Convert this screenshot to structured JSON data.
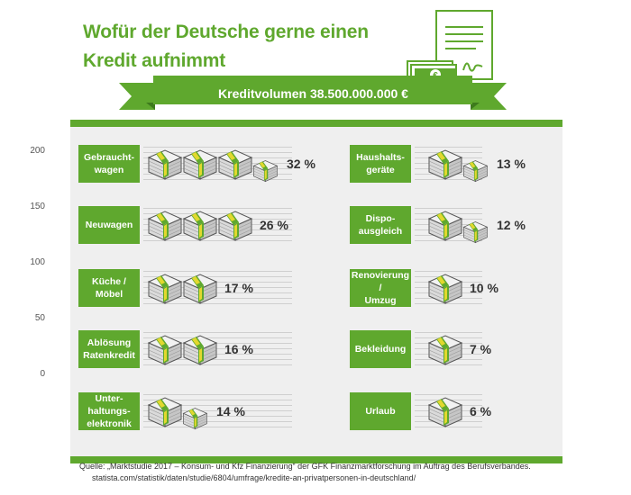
{
  "title": "Wofür der Deutsche gerne einen Kredit aufnimmt",
  "banner": "Kreditvolumen 38.500.000.000 €",
  "doc_icon": {
    "symbol": "€",
    "name": "document-with-money-icon"
  },
  "colors": {
    "green": "#5fa82e",
    "panel": "#efefef",
    "money_light": "#f2f2f2",
    "money_band": "#e2d82e"
  },
  "source": {
    "line1": "Quelle: „Marktstudie 2017 – Konsum- und Kfz Finanzierung“ der GFK Finanzmarktforschung im Auftrag des Berufsverbandes.",
    "line2": "statista.com/statistik/daten/studie/6804/umfrage/kredite-an-privatpersonen-in-deutschland/"
  },
  "chart_data": {
    "type": "bar",
    "unit": "%",
    "y_ticks": [
      "200",
      "150",
      "100",
      "50",
      "0"
    ],
    "categories": [
      "Gebraucht-\nwagen",
      "Neuwagen",
      "Küche /\nMöbel",
      "Ablösung\nRatenkredit",
      "Unter-\nhaltungs-\nelektronik",
      "Haushalts-\ngeräte",
      "Dispo-\nausgleich",
      "Renovierung /\nUmzug",
      "Bekleidung",
      "Urlaub"
    ],
    "values": [
      32,
      26,
      17,
      16,
      14,
      13,
      12,
      10,
      7,
      6
    ],
    "labels": [
      "32 %",
      "26 %",
      "17 %",
      "16 %",
      "14 %",
      "13 %",
      "12 %",
      "10 %",
      "7 %",
      "6 %"
    ]
  }
}
